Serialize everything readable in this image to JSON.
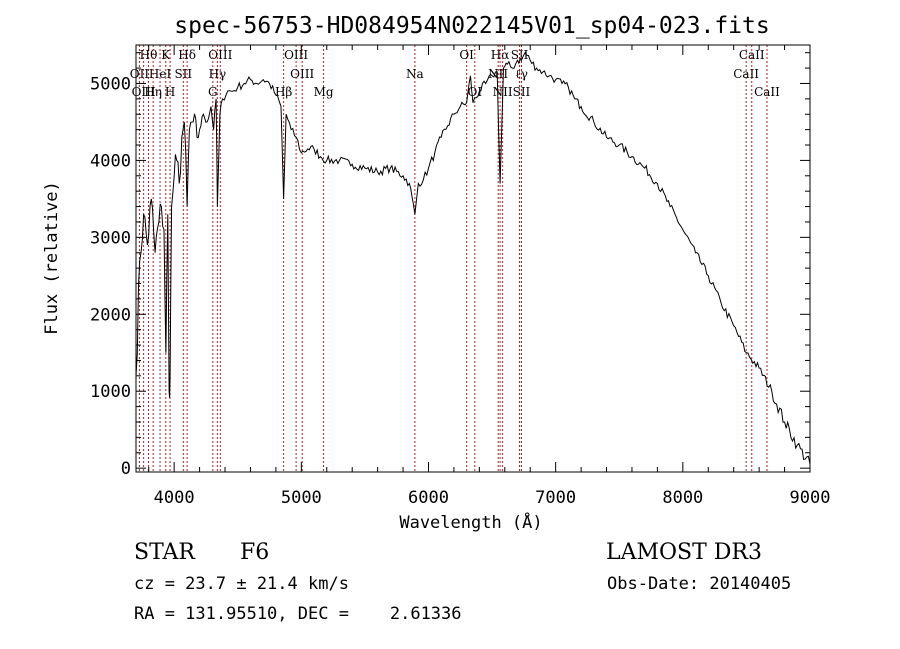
{
  "chart_data": {
    "type": "line",
    "title": "spec-56753-HD084954N022145V01_sp04-023.fits",
    "xlabel": "Wavelength (Å)",
    "ylabel": "Flux (relative)",
    "xlim": [
      3700,
      9000
    ],
    "ylim": [
      -50,
      5500
    ],
    "xticks": [
      4000,
      5000,
      6000,
      7000,
      8000,
      9000
    ],
    "yticks": [
      0,
      1000,
      2000,
      3000,
      4000,
      5000
    ],
    "grid": false,
    "legend": "none",
    "line_color": "#000000",
    "marker_color": "#b22222",
    "series": [
      {
        "x": [
          3700,
          3730,
          3760,
          3790,
          3820,
          3850,
          3880,
          3900,
          3920,
          3935,
          3950,
          3960,
          3968,
          3980,
          4000,
          4020,
          4040,
          4060,
          4080,
          4102,
          4120,
          4150,
          4180,
          4200,
          4230,
          4260,
          4290,
          4310,
          4330,
          4340,
          4360,
          4380,
          4420,
          4460,
          4500,
          4550,
          4600,
          4650,
          4700,
          4750,
          4800,
          4840,
          4861,
          4880,
          4920,
          4960,
          5000,
          5050,
          5100,
          5150,
          5200,
          5300,
          5400,
          5500,
          5600,
          5700,
          5800,
          5850,
          5893,
          5920,
          5960,
          6000,
          6050,
          6100,
          6150,
          6200,
          6250,
          6300,
          6330,
          6350,
          6400,
          6450,
          6500,
          6540,
          6563,
          6590,
          6620,
          6660,
          6700,
          6730,
          6760,
          6800,
          6850,
          6900,
          6950,
          7000,
          7050,
          7100,
          7150,
          7200,
          7300,
          7400,
          7500,
          7600,
          7700,
          7800,
          7900,
          8000,
          8100,
          8200,
          8300,
          8400,
          8500,
          8600,
          8700,
          8800,
          8900,
          9000
        ],
        "y": [
          1200,
          2700,
          3300,
          2900,
          3500,
          2800,
          3200,
          3400,
          3100,
          1500,
          3300,
          1000,
          1200,
          3400,
          3800,
          4000,
          3700,
          4300,
          4500,
          3400,
          4400,
          4500,
          4300,
          4400,
          4600,
          4500,
          4700,
          4400,
          4800,
          3400,
          4600,
          4800,
          4900,
          4900,
          4950,
          5000,
          5050,
          5000,
          5050,
          5000,
          4850,
          4700,
          3500,
          4600,
          4400,
          4300,
          4100,
          4150,
          4150,
          4050,
          4000,
          4000,
          3950,
          3900,
          3850,
          3900,
          3800,
          3700,
          3300,
          3700,
          3750,
          3900,
          4100,
          4300,
          4450,
          4600,
          4700,
          4750,
          5100,
          4750,
          4900,
          5000,
          5100,
          5150,
          3700,
          5200,
          5250,
          5200,
          5300,
          5300,
          5400,
          5300,
          5200,
          5150,
          5100,
          5050,
          5000,
          4950,
          4800,
          4700,
          4500,
          4300,
          4200,
          4050,
          3900,
          3700,
          3400,
          3100,
          2800,
          2500,
          2150,
          1850,
          1500,
          1300,
          1000,
          600,
          300,
          50
        ]
      }
    ],
    "line_markers": [
      {
        "label": "Hθ",
        "x": 3798,
        "row": 0
      },
      {
        "label": "OII",
        "x": 3727,
        "row": 1
      },
      {
        "label": "OIII",
        "x": 3760,
        "row": 2
      },
      {
        "label": "K",
        "x": 3934,
        "row": 0
      },
      {
        "label": "HeI",
        "x": 3889,
        "row": 1
      },
      {
        "label": "Hη",
        "x": 3835,
        "row": 2
      },
      {
        "label": "Hδ",
        "x": 4102,
        "row": 0
      },
      {
        "label": "SII",
        "x": 4072,
        "row": 1
      },
      {
        "label": "H",
        "x": 3968,
        "row": 2
      },
      {
        "label": "OIII",
        "x": 4363,
        "row": 0
      },
      {
        "label": "Hγ",
        "x": 4340,
        "row": 1
      },
      {
        "label": "G",
        "x": 4304,
        "row": 2
      },
      {
        "label": "OIII",
        "x": 4959,
        "row": 0
      },
      {
        "label": "OIII",
        "x": 5007,
        "row": 1
      },
      {
        "label": "Hβ",
        "x": 4861,
        "row": 2
      },
      {
        "label": "Mg",
        "x": 5175,
        "row": 2
      },
      {
        "label": "Na",
        "x": 5893,
        "row": 1
      },
      {
        "label": "OI",
        "x": 6300,
        "row": 0
      },
      {
        "label": "OI",
        "x": 6364,
        "row": 2
      },
      {
        "label": "Hα",
        "x": 6563,
        "row": 0
      },
      {
        "label": "NII",
        "x": 6548,
        "row": 1
      },
      {
        "label": "NII",
        "x": 6583,
        "row": 2
      },
      {
        "label": "SII",
        "x": 6716,
        "row": 0
      },
      {
        "label": "ℓγ",
        "x": 6731,
        "row": 1
      },
      {
        "label": "SII",
        "x": 6731,
        "row": 2
      },
      {
        "label": "CaII",
        "x": 8542,
        "row": 0
      },
      {
        "label": "CaII",
        "x": 8498,
        "row": 1
      },
      {
        "label": "CaII",
        "x": 8662,
        "row": 2
      }
    ]
  },
  "info": {
    "object_class": "STAR",
    "subclass": "F6",
    "survey": "LAMOST DR3",
    "redshift": "cz = 23.7 ± 21.4 km/s",
    "obs_date": "Obs-Date: 20140405",
    "coords": "RA = 131.95510, DEC =    2.61336"
  }
}
